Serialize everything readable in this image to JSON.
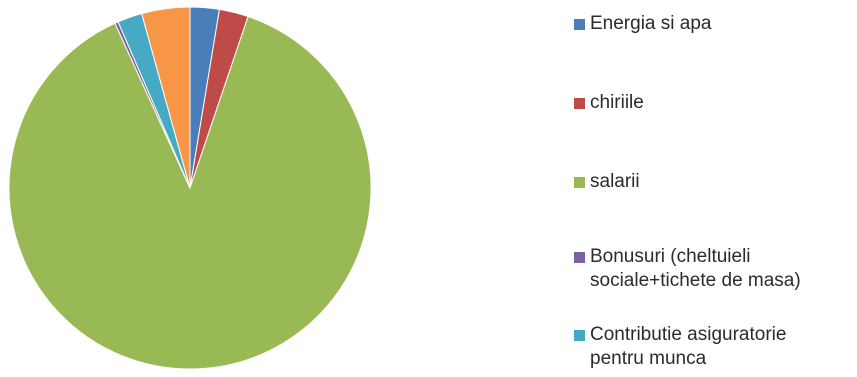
{
  "chart_data": {
    "type": "pie",
    "slices": [
      {
        "label": "Energia si apa",
        "value": 2.6,
        "color": "#4a7ebb"
      },
      {
        "label": "chiriile",
        "value": 2.6,
        "color": "#be4b48"
      },
      {
        "label": "salarii",
        "value": 88.0,
        "color": "#98b954"
      },
      {
        "label": "Bonusuri (cheltuieli\nsociale+tichete de masa)",
        "value": 0.3,
        "color": "#7d60a0"
      },
      {
        "label": "Contributie asiguratorie\npentru munca",
        "value": 2.2,
        "color": "#46aac5"
      },
      {
        "label": "",
        "value": 4.3,
        "color": "#f79646"
      }
    ],
    "legend_position": "right"
  }
}
